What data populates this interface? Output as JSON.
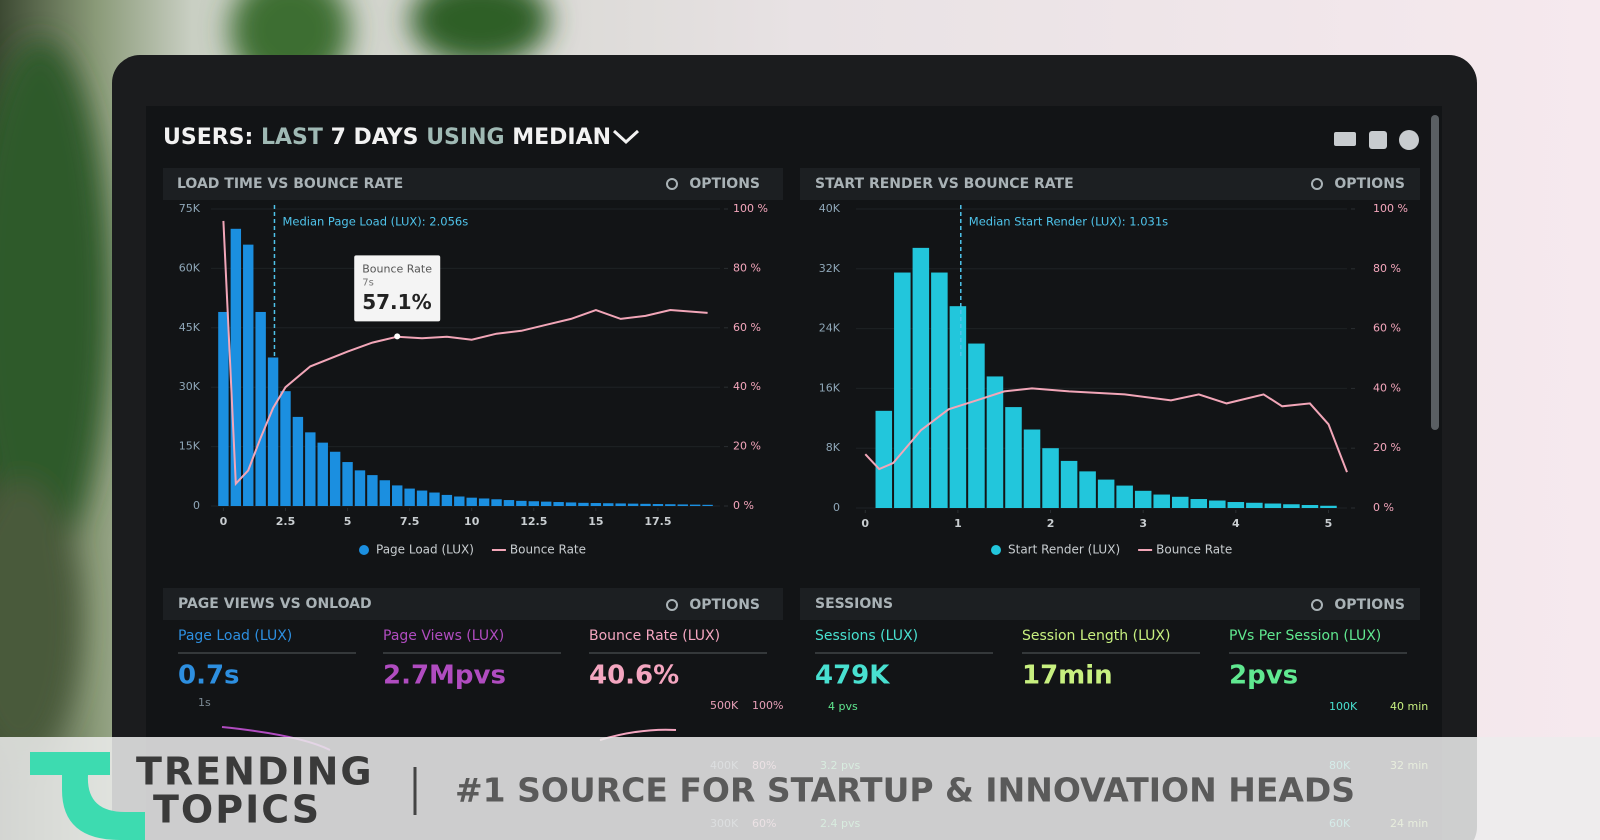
{
  "header": {
    "title_parts": [
      "USERS:",
      "LAST",
      "7 DAYS",
      "USING",
      "MEDIAN"
    ]
  },
  "chart_data": [
    {
      "type": "histogram",
      "title": "LOAD TIME VS BOUNCE RATE",
      "options": "OPTIONS",
      "bins": [
        -0.25,
        0.25,
        0.75,
        1.25,
        1.75,
        2.25,
        2.75,
        3.25,
        3.75,
        4.25,
        4.75,
        5.25,
        5.75,
        6.25,
        6.75,
        7.25,
        7.75,
        8.25,
        8.75,
        9.25,
        9.75,
        10.25,
        10.75,
        11.25,
        11.75,
        12.25,
        12.75,
        13.25,
        13.75,
        14.25,
        14.75,
        15.25,
        15.75,
        16.25,
        16.75,
        17.25,
        17.75,
        18.25,
        18.75,
        19.25,
        19.75
      ],
      "series": [
        {
          "name": "Page Load (LUX)",
          "color": "#1b8fe0",
          "values": [
            49000,
            70000,
            66000,
            49000,
            37500,
            29000,
            22500,
            18600,
            16000,
            13700,
            11100,
            9000,
            7800,
            6500,
            5200,
            4400,
            3900,
            3400,
            2800,
            2400,
            2100,
            1900,
            1700,
            1500,
            1300,
            1200,
            1100,
            1000,
            900,
            800,
            750,
            700,
            650,
            600,
            550,
            500,
            450,
            400,
            350,
            300
          ]
        },
        {
          "name": "Bounce Rate",
          "color": "#f2a6b8",
          "axis": "y2",
          "x": [
            0,
            0.5,
            1,
            1.5,
            2,
            2.5,
            3.5,
            5,
            6,
            7,
            8,
            9,
            10,
            11,
            12,
            13,
            14,
            15,
            16,
            17,
            18,
            19.5
          ],
          "values": [
            96,
            7.5,
            12,
            23,
            33,
            40,
            47,
            52,
            55,
            57,
            56.5,
            57,
            56,
            58,
            59,
            61,
            63,
            66,
            63,
            64,
            66,
            65
          ]
        }
      ],
      "xlim": [
        -0.5,
        20
      ],
      "xticks": [
        0,
        2.5,
        5,
        7.5,
        10,
        12.5,
        15,
        17.5
      ],
      "ylim": [
        0,
        75000
      ],
      "yticks": [
        0,
        {
          "value": 15000,
          "label": "15K"
        },
        {
          "value": 30000,
          "label": "30K"
        },
        {
          "value": 45000,
          "label": "45K"
        },
        {
          "value": 60000,
          "label": "60K"
        },
        {
          "value": 75000,
          "label": "75K"
        }
      ],
      "y2lim": [
        0,
        100
      ],
      "y2ticks": [
        {
          "value": 0,
          "label": "0 %"
        },
        {
          "value": 20,
          "label": "20 %"
        },
        {
          "value": 40,
          "label": "40 %"
        },
        {
          "value": 60,
          "label": "60 %"
        },
        {
          "value": 80,
          "label": "80 %"
        },
        {
          "value": 100,
          "label": "100 %"
        }
      ],
      "grid": true,
      "median": {
        "value": 2.056,
        "label": "Median Page Load (LUX): 2.056s"
      },
      "tooltip": {
        "title": "Bounce Rate",
        "x": {
          "value": 7,
          "label": "7s"
        },
        "value": {
          "value": 57.1,
          "label": "57.1%"
        }
      }
    },
    {
      "type": "histogram",
      "title": "START RENDER VS BOUNCE RATE",
      "options": "OPTIONS",
      "bins": [
        0.1,
        0.3,
        0.5,
        0.7,
        0.9,
        1.1,
        1.3,
        1.5,
        1.7,
        1.9,
        2.1,
        2.3,
        2.5,
        2.7,
        2.9,
        3.1,
        3.3,
        3.5,
        3.7,
        3.9,
        4.1,
        4.3,
        4.5,
        4.7,
        4.9,
        5.1
      ],
      "series": [
        {
          "name": "Start Render (LUX)",
          "color": "#22c6dc",
          "values": [
            13000,
            31500,
            34800,
            31500,
            27000,
            22000,
            17600,
            13500,
            10500,
            8000,
            6300,
            4900,
            3800,
            3000,
            2300,
            1800,
            1500,
            1200,
            1000,
            800,
            700,
            600,
            500,
            400,
            300
          ]
        },
        {
          "name": "Bounce Rate",
          "color": "#f2a6b8",
          "axis": "y2",
          "x": [
            0,
            0.15,
            0.3,
            0.6,
            0.9,
            1.2,
            1.5,
            1.8,
            2.2,
            2.8,
            3.3,
            3.6,
            3.9,
            4.3,
            4.5,
            4.8,
            5.0,
            5.2
          ],
          "values": [
            18,
            13,
            15,
            26,
            33,
            36,
            39,
            40,
            39,
            38,
            36,
            38,
            35,
            38,
            34,
            35,
            28,
            12
          ]
        }
      ],
      "xlim": [
        -0.1,
        5.2
      ],
      "xticks": [
        0,
        1,
        2,
        3,
        4,
        5
      ],
      "ylim": [
        0,
        40000
      ],
      "yticks": [
        0,
        {
          "value": 8000,
          "label": "8K"
        },
        {
          "value": 16000,
          "label": "16K"
        },
        {
          "value": 24000,
          "label": "24K"
        },
        {
          "value": 32000,
          "label": "32K"
        },
        {
          "value": 40000,
          "label": "40K"
        }
      ],
      "y2lim": [
        0,
        100
      ],
      "y2ticks": [
        {
          "value": 0,
          "label": "0 %"
        },
        {
          "value": 20,
          "label": "20 %"
        },
        {
          "value": 40,
          "label": "40 %"
        },
        {
          "value": 60,
          "label": "60 %"
        },
        {
          "value": 80,
          "label": "80 %"
        },
        {
          "value": 100,
          "label": "100 %"
        }
      ],
      "grid": true,
      "median": {
        "value": 1.031,
        "label": "Median Start Render (LUX): 1.031s"
      }
    }
  ],
  "panels": [
    {
      "title": "PAGE VIEWS VS ONLOAD",
      "options": "OPTIONS",
      "metrics": [
        {
          "label": "Page Load (LUX)",
          "value": "0.7s"
        },
        {
          "label": "Page Views (LUX)",
          "value": "2.7Mpvs"
        },
        {
          "label": "Bounce Rate (LUX)",
          "value": "40.6%"
        }
      ],
      "axis_labels": [
        "1s",
        "500K",
        "100%",
        "400K",
        "80%",
        "300K",
        "60%"
      ]
    },
    {
      "title": "SESSIONS",
      "options": "OPTIONS",
      "metrics": [
        {
          "label": "Sessions (LUX)",
          "value": "479K"
        },
        {
          "label": "Session Length (LUX)",
          "value": "17min"
        },
        {
          "label": "PVs Per Session (LUX)",
          "value": "2pvs"
        }
      ],
      "axis_labels": [
        "4 pvs",
        "100K",
        "40 min",
        "3.2 pvs",
        "80K",
        "32 min",
        "2.4 pvs",
        "60K",
        "24 min"
      ]
    }
  ],
  "banner": {
    "brand_line1": "TRENDING",
    "brand_line2": "TOPICS",
    "tagline": "#1 SOURCE FOR STARTUP & INNOVATION HEADS"
  }
}
